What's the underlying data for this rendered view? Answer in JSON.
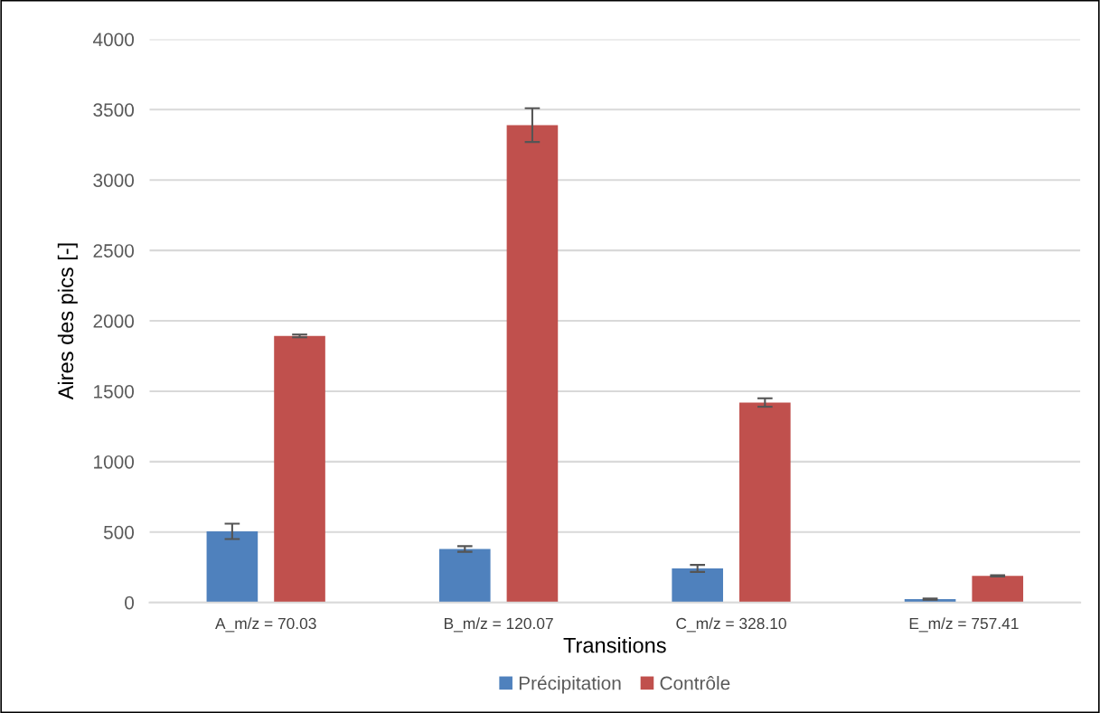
{
  "chart_data": {
    "type": "bar",
    "xlabel": "Transitions",
    "ylabel": "Aires des pics [-]",
    "categories": [
      "A_m/z = 70.03",
      "B_m/z = 120.07",
      "C_m/z = 328.10",
      "E_m/z = 757.41"
    ],
    "series": [
      {
        "name": "Précipitation",
        "color": "#4f81bd",
        "values": [
          505,
          380,
          242,
          24
        ],
        "errors": [
          55,
          20,
          25,
          5
        ]
      },
      {
        "name": "Contrôle",
        "color": "#c0504d",
        "values": [
          1893,
          3390,
          1420,
          189
        ],
        "errors": [
          10,
          120,
          30,
          5
        ]
      }
    ],
    "ylim": [
      0,
      4000
    ],
    "yticks": [
      0,
      500,
      1000,
      1500,
      2000,
      2500,
      3000,
      3500,
      4000
    ],
    "grid": "y",
    "legend": "bottom"
  }
}
